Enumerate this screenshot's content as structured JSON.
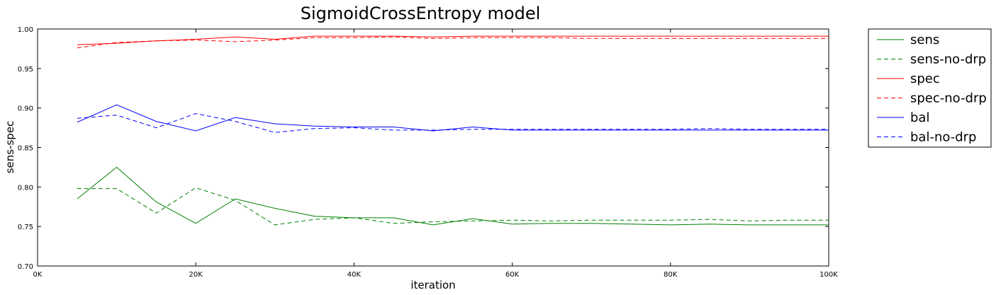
{
  "chart_data": {
    "type": "line",
    "title": "SigmoidCrossEntropy model",
    "xlabel": "iteration",
    "ylabel": "sens-spec",
    "xlim": [
      0,
      100000
    ],
    "ylim": [
      0.7,
      1.0
    ],
    "xticks": [
      0,
      20000,
      40000,
      60000,
      80000,
      100000
    ],
    "xtick_labels": [
      "0K",
      "20K",
      "40K",
      "60K",
      "80K",
      "100K"
    ],
    "yticks": [
      0.7,
      0.75,
      0.8,
      0.85,
      0.9,
      0.95,
      1.0
    ],
    "ytick_labels": [
      "0.70",
      "0.75",
      "0.80",
      "0.85",
      "0.90",
      "0.95",
      "1.00"
    ],
    "grid": false,
    "legend_position": "outside-right",
    "x": [
      5000,
      10000,
      15000,
      20000,
      25000,
      30000,
      35000,
      40000,
      45000,
      50000,
      55000,
      60000,
      65000,
      70000,
      75000,
      80000,
      85000,
      90000,
      95000,
      100000
    ],
    "series": [
      {
        "name": "sens",
        "color": "#008000",
        "dash": "solid",
        "values": [
          0.785,
          0.825,
          0.781,
          0.754,
          0.785,
          0.773,
          0.763,
          0.761,
          0.761,
          0.752,
          0.76,
          0.753,
          0.754,
          0.754,
          0.753,
          0.752,
          0.753,
          0.752,
          0.752,
          0.752
        ]
      },
      {
        "name": "sens-no-drp",
        "color": "#008000",
        "dash": "dashed",
        "values": [
          0.798,
          0.798,
          0.767,
          0.799,
          0.783,
          0.752,
          0.759,
          0.761,
          0.754,
          0.756,
          0.757,
          0.758,
          0.757,
          0.758,
          0.758,
          0.758,
          0.759,
          0.757,
          0.758,
          0.758
        ]
      },
      {
        "name": "spec",
        "color": "#ff0000",
        "dash": "solid",
        "values": [
          0.98,
          0.982,
          0.985,
          0.987,
          0.99,
          0.987,
          0.991,
          0.991,
          0.991,
          0.99,
          0.991,
          0.991,
          0.991,
          0.991,
          0.991,
          0.991,
          0.991,
          0.991,
          0.991,
          0.991
        ]
      },
      {
        "name": "spec-no-drp",
        "color": "#ff0000",
        "dash": "dashed",
        "values": [
          0.976,
          0.983,
          0.985,
          0.986,
          0.984,
          0.986,
          0.989,
          0.989,
          0.99,
          0.988,
          0.989,
          0.989,
          0.989,
          0.988,
          0.988,
          0.988,
          0.988,
          0.988,
          0.988,
          0.988
        ]
      },
      {
        "name": "bal",
        "color": "#0000ff",
        "dash": "solid",
        "values": [
          0.882,
          0.904,
          0.883,
          0.871,
          0.888,
          0.88,
          0.877,
          0.876,
          0.876,
          0.871,
          0.876,
          0.872,
          0.872,
          0.872,
          0.872,
          0.872,
          0.872,
          0.872,
          0.872,
          0.872
        ]
      },
      {
        "name": "bal-no-drp",
        "color": "#0000ff",
        "dash": "dashed",
        "values": [
          0.887,
          0.891,
          0.875,
          0.893,
          0.883,
          0.869,
          0.874,
          0.875,
          0.872,
          0.872,
          0.873,
          0.873,
          0.873,
          0.873,
          0.873,
          0.873,
          0.874,
          0.873,
          0.873,
          0.873
        ]
      }
    ]
  }
}
